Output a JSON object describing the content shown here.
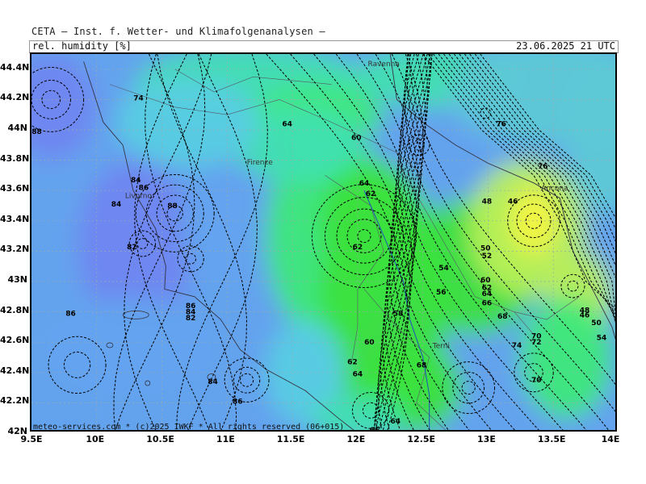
{
  "header": {
    "title": "CETA — Inst. f. Wetter- und Klimafolgenanalysen —",
    "variable": "rel. humidity [%]",
    "datetime": "23.06.2025 21 UTC"
  },
  "credit": "meteo-services.com * (c)2025 IWKF * All rights reserved (06+015)",
  "axes": {
    "y_ticks": [
      "44.4N",
      "44.2N",
      "44N",
      "43.8N",
      "43.6N",
      "43.4N",
      "43.2N",
      "43N",
      "42.8N",
      "42.6N",
      "42.4N",
      "42.2N",
      "42N"
    ],
    "x_ticks": [
      "9.5E",
      "10E",
      "10.5E",
      "11E",
      "11.5E",
      "12E",
      "12.5E",
      "13E",
      "13.5E",
      "14E"
    ]
  },
  "cities": [
    {
      "name": "Ravenna",
      "lon": 12.2,
      "lat": 44.42
    },
    {
      "name": "Firenze",
      "lon": 11.25,
      "lat": 43.77
    },
    {
      "name": "Livorno",
      "lon": 10.32,
      "lat": 43.55
    },
    {
      "name": "Terni",
      "lon": 12.64,
      "lat": 42.56
    },
    {
      "name": "Ancona",
      "lon": 13.51,
      "lat": 43.6
    }
  ],
  "colors": {
    "very_humid": "#6f86f0",
    "humid": "#63a3ee",
    "moist": "#57cde2",
    "mid": "#40e0b0",
    "medium": "#3fe87a",
    "dryish": "#3ae13c",
    "dry": "#b8ef57",
    "driest": "#f3f542",
    "teal": "#5dc9d6"
  },
  "chart_data": {
    "type": "contour_map",
    "variable": "rel. humidity [%]",
    "lon_range": [
      9.5,
      14
    ],
    "lat_range": [
      42,
      44.5
    ],
    "contour_labels": [
      {
        "v": 88,
        "lon": 9.54,
        "lat": 43.99
      },
      {
        "v": 74,
        "lon": 10.32,
        "lat": 44.21
      },
      {
        "v": 64,
        "lon": 11.46,
        "lat": 44.04
      },
      {
        "v": 60,
        "lon": 11.99,
        "lat": 43.95
      },
      {
        "v": 76,
        "lon": 13.1,
        "lat": 44.04
      },
      {
        "v": 76,
        "lon": 13.42,
        "lat": 43.76
      },
      {
        "v": 84,
        "lon": 10.3,
        "lat": 43.67
      },
      {
        "v": 86,
        "lon": 10.36,
        "lat": 43.62
      },
      {
        "v": 84,
        "lon": 10.15,
        "lat": 43.51
      },
      {
        "v": 88,
        "lon": 10.58,
        "lat": 43.5
      },
      {
        "v": 82,
        "lon": 10.27,
        "lat": 43.23
      },
      {
        "v": 64,
        "lon": 12.05,
        "lat": 43.65
      },
      {
        "v": 62,
        "lon": 12.1,
        "lat": 43.58
      },
      {
        "v": 48,
        "lon": 12.99,
        "lat": 43.53
      },
      {
        "v": 46,
        "lon": 13.19,
        "lat": 43.53
      },
      {
        "v": 62,
        "lon": 12.0,
        "lat": 43.23
      },
      {
        "v": 50,
        "lon": 12.98,
        "lat": 43.22
      },
      {
        "v": 52,
        "lon": 12.99,
        "lat": 43.17
      },
      {
        "v": 54,
        "lon": 12.66,
        "lat": 43.09
      },
      {
        "v": 56,
        "lon": 12.64,
        "lat": 42.93
      },
      {
        "v": 60,
        "lon": 12.98,
        "lat": 43.01
      },
      {
        "v": 62,
        "lon": 12.99,
        "lat": 42.96
      },
      {
        "v": 64,
        "lon": 12.99,
        "lat": 42.92
      },
      {
        "v": 66,
        "lon": 12.99,
        "lat": 42.86
      },
      {
        "v": 68,
        "lon": 13.11,
        "lat": 42.77
      },
      {
        "v": 58,
        "lon": 12.31,
        "lat": 42.79
      },
      {
        "v": 60,
        "lon": 12.09,
        "lat": 42.6
      },
      {
        "v": 86,
        "lon": 10.72,
        "lat": 42.84
      },
      {
        "v": 84,
        "lon": 10.72,
        "lat": 42.8
      },
      {
        "v": 82,
        "lon": 10.72,
        "lat": 42.76
      },
      {
        "v": 86,
        "lon": 9.8,
        "lat": 42.79
      },
      {
        "v": 70,
        "lon": 13.37,
        "lat": 42.64
      },
      {
        "v": 72,
        "lon": 13.37,
        "lat": 42.6
      },
      {
        "v": 74,
        "lon": 13.22,
        "lat": 42.58
      },
      {
        "v": 48,
        "lon": 13.74,
        "lat": 42.81
      },
      {
        "v": 46,
        "lon": 13.74,
        "lat": 42.78
      },
      {
        "v": 50,
        "lon": 13.83,
        "lat": 42.73
      },
      {
        "v": 54,
        "lon": 13.87,
        "lat": 42.63
      },
      {
        "v": 62,
        "lon": 11.96,
        "lat": 42.47
      },
      {
        "v": 68,
        "lon": 12.49,
        "lat": 42.45
      },
      {
        "v": 64,
        "lon": 12.0,
        "lat": 42.39
      },
      {
        "v": 84,
        "lon": 10.89,
        "lat": 42.34
      },
      {
        "v": 86,
        "lon": 11.08,
        "lat": 42.21
      },
      {
        "v": 70,
        "lon": 13.37,
        "lat": 42.35
      },
      {
        "v": 64,
        "lon": 12.29,
        "lat": 42.08
      },
      {
        "v": 66,
        "lon": 12.13,
        "lat": 42.02
      }
    ]
  }
}
